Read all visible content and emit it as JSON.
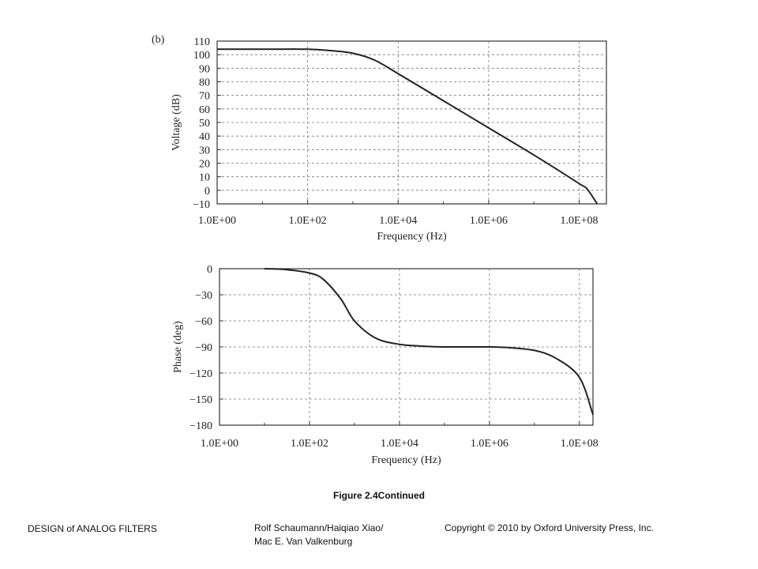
{
  "chart_data": [
    {
      "type": "line",
      "panel_label": "(b)",
      "xlabel": "Frequency (Hz)",
      "ylabel": "Voltage (dB)",
      "x_scale": "log",
      "xlim": [
        1,
        400000000
      ],
      "ylim": [
        -10,
        110
      ],
      "x_ticks": [
        1,
        100,
        10000,
        1000000,
        100000000
      ],
      "x_tick_labels": [
        "1.0E+00",
        "1.0E+02",
        "1.0E+04",
        "1.0E+06",
        "1.0E+08"
      ],
      "y_ticks": [
        -10,
        0,
        10,
        20,
        30,
        40,
        50,
        60,
        70,
        80,
        90,
        100,
        110
      ],
      "y_tick_labels": [
        "−10",
        "0",
        "10",
        "20",
        "30",
        "40",
        "50",
        "60",
        "70",
        "80",
        "90",
        "100",
        "110"
      ],
      "grid": true,
      "series": [
        {
          "x": [
            1,
            10,
            100,
            316,
            1000,
            3000,
            10000,
            100000,
            1000000,
            10000000,
            100000000,
            150000000,
            250000000
          ],
          "y": [
            104,
            104,
            104,
            103,
            101,
            96,
            86,
            66,
            46,
            26,
            5,
            1,
            -10
          ]
        }
      ]
    },
    {
      "type": "line",
      "xlabel": "Frequency (Hz)",
      "ylabel": "Phase (deg)",
      "x_scale": "log",
      "xlim": [
        1,
        200000000
      ],
      "ylim": [
        -180,
        0
      ],
      "x_ticks": [
        1,
        100,
        10000,
        1000000,
        100000000
      ],
      "x_tick_labels": [
        "1.0E+00",
        "1.0E+02",
        "1.0E+04",
        "1.0E+06",
        "1.0E+08"
      ],
      "y_ticks": [
        0,
        -30,
        -60,
        -90,
        -120,
        -150,
        -180
      ],
      "y_tick_labels": [
        "0",
        "−30",
        "−60",
        "−90",
        "−120",
        "−150",
        "−180"
      ],
      "grid": true,
      "series": [
        {
          "x": [
            10,
            30,
            100,
            200,
            500,
            1000,
            3000,
            10000,
            30000,
            100000,
            1000000,
            3000000,
            10000000,
            30000000,
            100000000,
            200000000
          ],
          "y": [
            0,
            -1,
            -5,
            -12,
            -35,
            -60,
            -80,
            -87,
            -89,
            -90,
            -90,
            -91,
            -94,
            -103,
            -125,
            -168
          ]
        }
      ]
    }
  ],
  "caption": "Figure 2.4Continued",
  "footer": {
    "left": "DESIGN of ANALOG FILTERS",
    "authors_line1": "Rolf Schaumann/Haiqiao Xiao/",
    "authors_line2": "Mac E. Van Valkenburg",
    "copyright": "Copyright © 2010 by Oxford University Press, Inc."
  }
}
